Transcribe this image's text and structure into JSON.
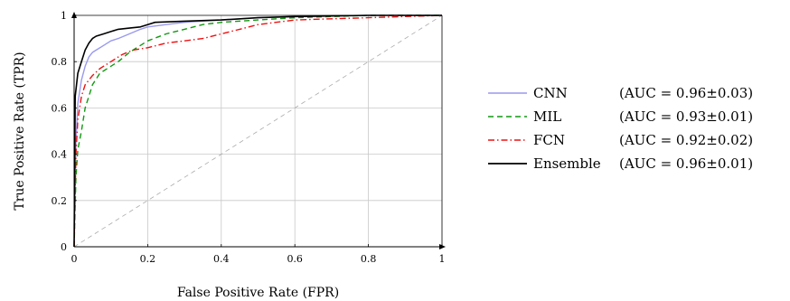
{
  "chart_data": {
    "type": "line",
    "title": "",
    "xlabel": "False Positive Rate (FPR)",
    "ylabel": "True Positive Rate (TPR)",
    "xlim": [
      0,
      1
    ],
    "ylim": [
      0,
      1
    ],
    "xticks": [
      "0",
      "0.2",
      "0.4",
      "0.6",
      "0.8",
      "1"
    ],
    "yticks": [
      "0",
      "0.2",
      "0.4",
      "0.6",
      "0.8",
      "1"
    ],
    "grid": true,
    "legend_position": "right",
    "reference_line": {
      "x": [
        0,
        1
      ],
      "y": [
        0,
        1
      ],
      "color": "#aaaaaa",
      "style": "dashed"
    },
    "series": [
      {
        "name": "CNN",
        "auc": "(AUC = 0.96±0.03)",
        "color": "#9999ee",
        "style": "solid",
        "x": [
          0,
          0.005,
          0.01,
          0.02,
          0.03,
          0.04,
          0.05,
          0.06,
          0.08,
          0.1,
          0.12,
          0.15,
          0.18,
          0.2,
          0.25,
          0.3,
          0.4,
          0.5,
          0.6,
          0.8,
          1
        ],
        "y": [
          0,
          0.45,
          0.62,
          0.72,
          0.78,
          0.82,
          0.84,
          0.85,
          0.87,
          0.89,
          0.9,
          0.92,
          0.94,
          0.95,
          0.96,
          0.97,
          0.98,
          0.99,
          0.995,
          1,
          1
        ]
      },
      {
        "name": "MIL",
        "auc": "(AUC = 0.93±0.01)",
        "color": "#119911",
        "style": "dashed",
        "x": [
          0,
          0.005,
          0.01,
          0.02,
          0.03,
          0.04,
          0.05,
          0.07,
          0.1,
          0.12,
          0.15,
          0.18,
          0.2,
          0.25,
          0.3,
          0.35,
          0.4,
          0.5,
          0.6,
          0.8,
          1
        ],
        "y": [
          0,
          0.3,
          0.42,
          0.5,
          0.6,
          0.65,
          0.7,
          0.75,
          0.78,
          0.8,
          0.84,
          0.87,
          0.89,
          0.92,
          0.94,
          0.96,
          0.97,
          0.98,
          0.99,
          1,
          1
        ]
      },
      {
        "name": "FCN",
        "auc": "(AUC = 0.92±0.02)",
        "color": "#ee1111",
        "style": "dashdot",
        "x": [
          0,
          0.005,
          0.01,
          0.02,
          0.03,
          0.05,
          0.07,
          0.1,
          0.13,
          0.16,
          0.2,
          0.25,
          0.3,
          0.35,
          0.4,
          0.45,
          0.5,
          0.6,
          0.7,
          0.8,
          0.9,
          1
        ],
        "y": [
          0,
          0.4,
          0.55,
          0.65,
          0.7,
          0.74,
          0.77,
          0.8,
          0.83,
          0.85,
          0.86,
          0.88,
          0.89,
          0.9,
          0.92,
          0.94,
          0.96,
          0.98,
          0.985,
          0.99,
          0.995,
          1
        ]
      },
      {
        "name": "Ensemble",
        "auc": "(AUC = 0.96±0.01)",
        "color": "#000000",
        "style": "solid",
        "x": [
          0,
          0.003,
          0.01,
          0.02,
          0.03,
          0.04,
          0.05,
          0.06,
          0.08,
          0.1,
          0.12,
          0.15,
          0.18,
          0.2,
          0.22,
          0.3,
          0.4,
          0.5,
          0.6,
          0.8,
          1
        ],
        "y": [
          0,
          0.65,
          0.75,
          0.8,
          0.85,
          0.88,
          0.9,
          0.91,
          0.92,
          0.93,
          0.94,
          0.945,
          0.95,
          0.96,
          0.97,
          0.975,
          0.98,
          0.99,
          0.995,
          1,
          1
        ]
      }
    ]
  }
}
